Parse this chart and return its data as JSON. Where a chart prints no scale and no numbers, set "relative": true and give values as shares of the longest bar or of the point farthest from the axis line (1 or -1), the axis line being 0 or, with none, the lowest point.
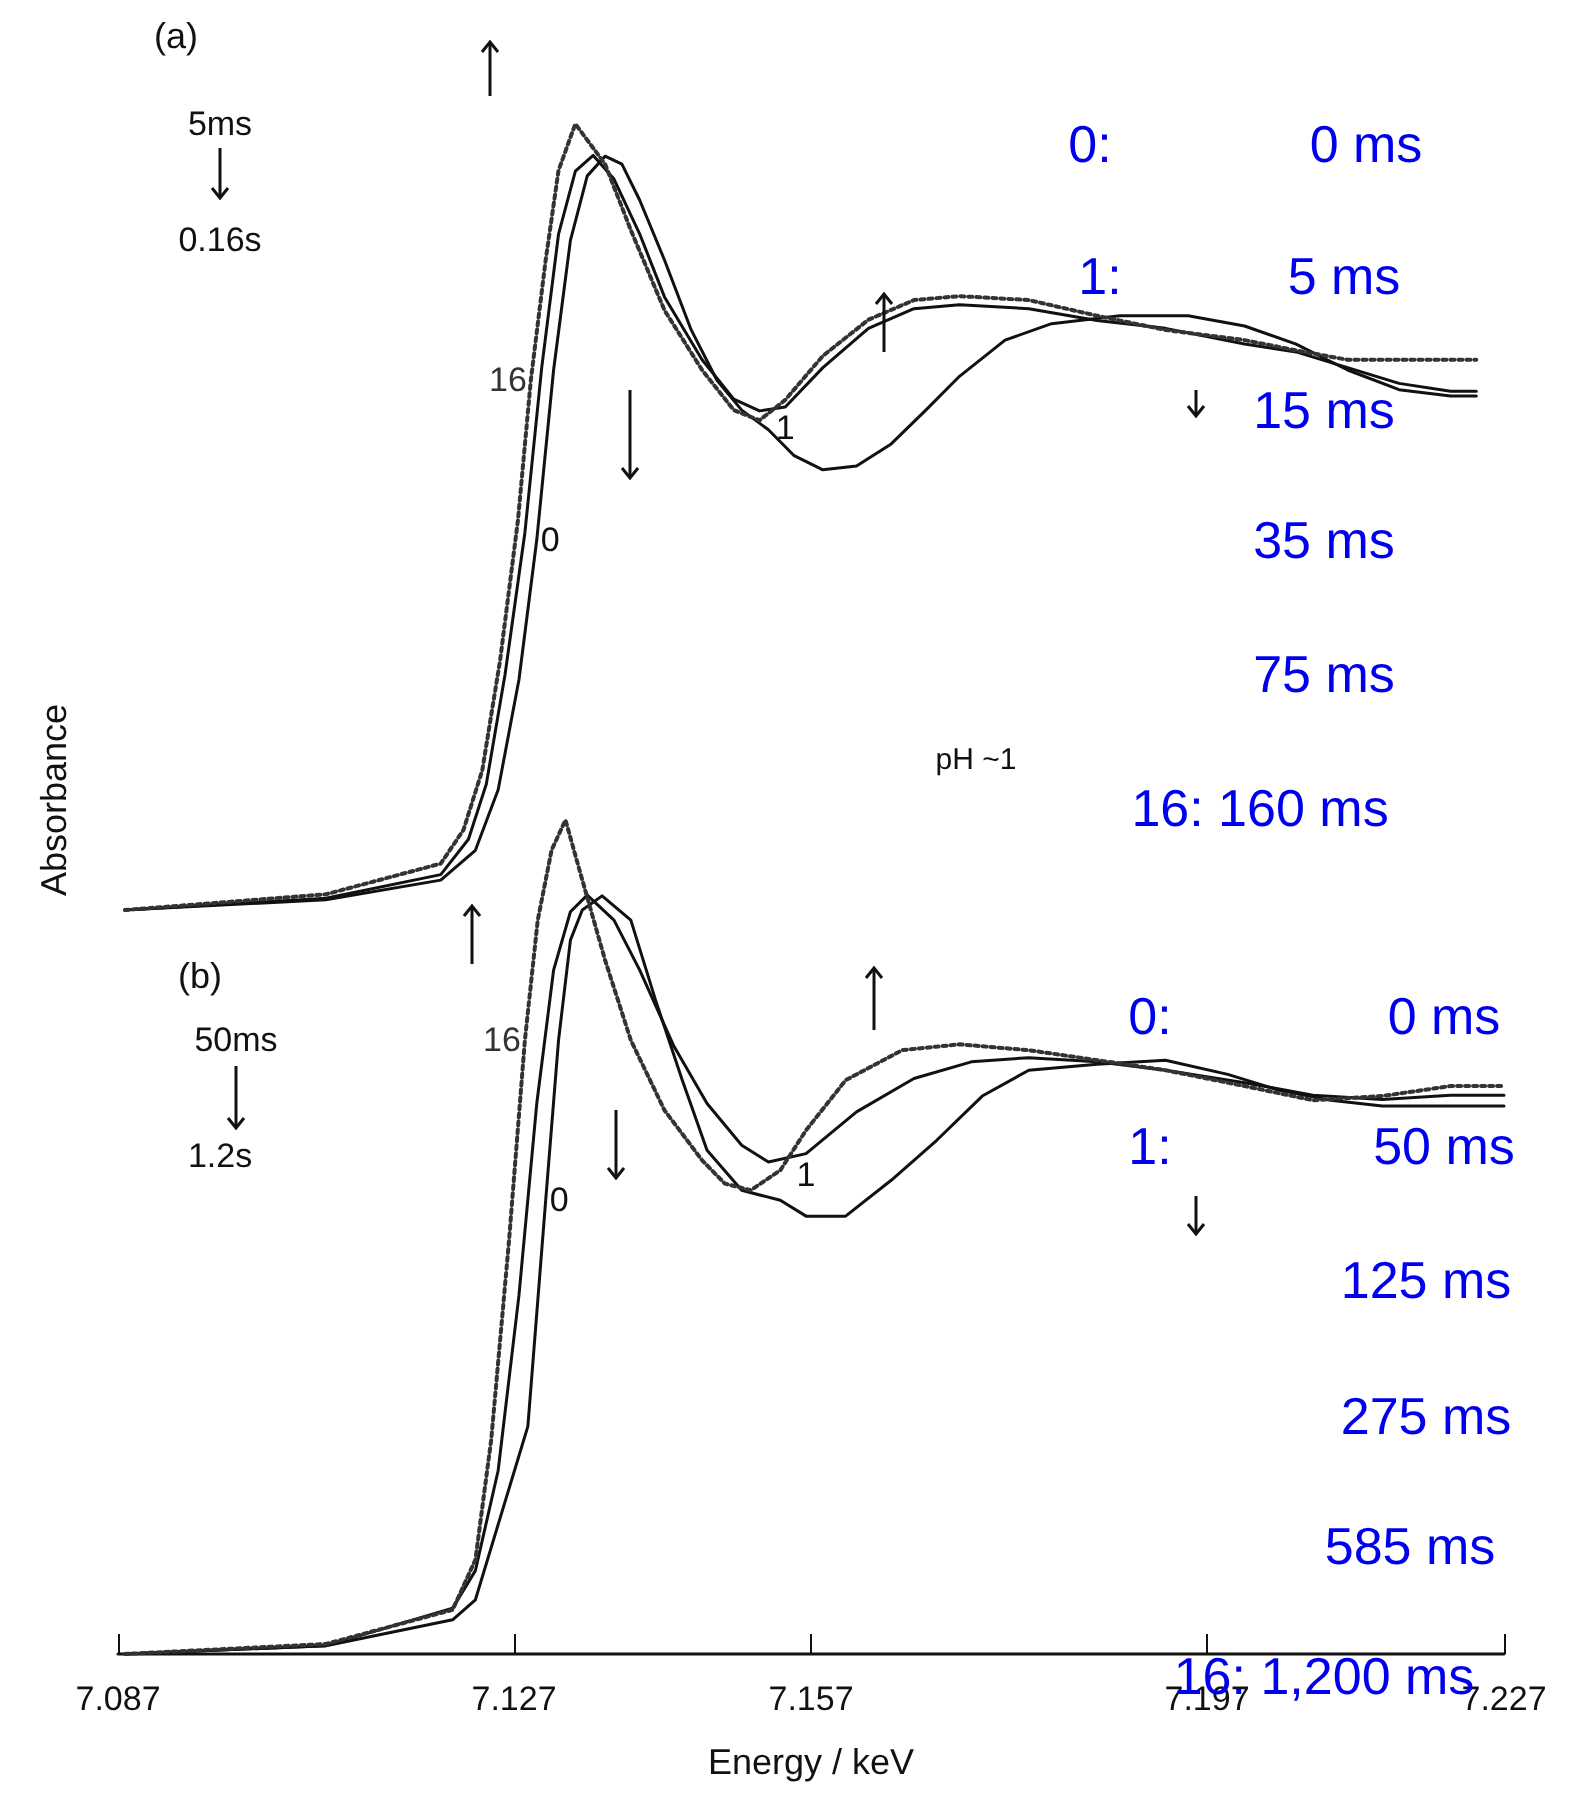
{
  "chart_data": [
    {
      "type": "line",
      "relative": true,
      "ylabel": "Absorbance",
      "xlim": [
        7.087,
        7.227
      ],
      "tick_labels": false,
      "grid": false,
      "legend": false,
      "marker": "none",
      "annotations": [
        "(a)",
        "5ms",
        "0.16s",
        "pH ~1",
        "0:",
        "0 ms",
        "1:",
        "5 ms",
        "15 ms",
        "35 ms",
        "75 ms",
        "16: 160 ms"
      ],
      "series": [
        {
          "name": "0",
          "color": "#111111",
          "line_style": "solid",
          "x": [
            7.0877,
            7.108,
            7.1196,
            7.1231,
            7.1254,
            7.1275,
            7.1293,
            7.131,
            7.1327,
            7.1344,
            7.1362,
            7.1379,
            7.1397,
            7.1422,
            7.1449,
            7.1475,
            7.15,
            7.1527,
            7.1553,
            7.1582,
            7.1616,
            7.1651,
            7.1686,
            7.172,
            7.1766,
            7.1813,
            7.1882,
            7.1951,
            7.2008,
            7.206,
            7.2112,
            7.2164,
            7.2216,
            7.2242
          ],
          "values": [
            0,
            0.013,
            0.038,
            0.076,
            0.153,
            0.293,
            0.471,
            0.687,
            0.852,
            0.934,
            0.959,
            0.949,
            0.903,
            0.827,
            0.738,
            0.674,
            0.636,
            0.611,
            0.578,
            0.56,
            0.565,
            0.593,
            0.636,
            0.679,
            0.725,
            0.746,
            0.756,
            0.756,
            0.743,
            0.72,
            0.687,
            0.662,
            0.654,
            0.654
          ]
        },
        {
          "name": "1",
          "color": "#111111",
          "line_style": "solid",
          "x": [
            7.0877,
            7.108,
            7.1196,
            7.1224,
            7.1242,
            7.1261,
            7.1281,
            7.1298,
            7.1315,
            7.1332,
            7.135,
            7.1371,
            7.1397,
            7.1422,
            7.146,
            7.1492,
            7.1518,
            7.1544,
            7.1582,
            7.1628,
            7.1674,
            7.172,
            7.179,
            7.1859,
            7.1928,
            7.2008,
            7.206,
            7.2112,
            7.2164,
            7.2216,
            7.2242
          ],
          "values": [
            0,
            0.015,
            0.045,
            0.09,
            0.16,
            0.3,
            0.48,
            0.69,
            0.86,
            0.94,
            0.96,
            0.93,
            0.86,
            0.78,
            0.7,
            0.65,
            0.635,
            0.64,
            0.69,
            0.74,
            0.765,
            0.77,
            0.765,
            0.75,
            0.74,
            0.72,
            0.71,
            0.69,
            0.67,
            0.66,
            0.66
          ]
        },
        {
          "name": "16",
          "color": "#333333",
          "line_style": "dotted",
          "x": [
            7.0877,
            7.108,
            7.1196,
            7.1219,
            7.1238,
            7.1256,
            7.1274,
            7.1287,
            7.1302,
            7.1315,
            7.1329,
            7.1332,
            7.1362,
            7.1388,
            7.1422,
            7.146,
            7.1492,
            7.1518,
            7.1544,
            7.1582,
            7.1628,
            7.1674,
            7.172,
            7.179,
            7.1859,
            7.1928,
            7.2008,
            7.206,
            7.2112,
            7.2164,
            7.2216,
            7.2242
          ],
          "values": [
            0,
            0.02,
            0.059,
            0.102,
            0.178,
            0.318,
            0.496,
            0.674,
            0.827,
            0.941,
            0.99,
            1,
            0.949,
            0.865,
            0.763,
            0.687,
            0.636,
            0.623,
            0.649,
            0.705,
            0.751,
            0.776,
            0.781,
            0.776,
            0.756,
            0.738,
            0.725,
            0.712,
            0.7,
            0.7,
            0.7,
            0.7
          ]
        }
      ]
    },
    {
      "type": "line",
      "relative": true,
      "xlabel": "Energy / keV",
      "xlim": [
        7.087,
        7.227
      ],
      "xticks": [
        7.087,
        7.127,
        7.157,
        7.197,
        7.227
      ],
      "tick_labels": "x",
      "grid": false,
      "legend": false,
      "marker": "none",
      "annotations": [
        "(b)",
        "50ms",
        "1.2s",
        "0:",
        "0 ms",
        "1:",
        "50 ms",
        "125 ms",
        "275 ms",
        "585 ms",
        "16: 1,200 ms"
      ],
      "series": [
        {
          "name": "0",
          "color": "#111111",
          "line_style": "solid",
          "x": [
            7.0877,
            7.108,
            7.1208,
            7.1231,
            7.1284,
            7.1302,
            7.1315,
            7.1327,
            7.1339,
            7.1359,
            7.1388,
            7.1413,
            7.144,
            7.1465,
            7.15,
            7.1539,
            7.1565,
            7.1605,
            7.1651,
            7.1697,
            7.1743,
            7.179,
            7.1859,
            7.1928,
            7.1991,
            7.2043,
            7.2095,
            7.2147,
            7.2216,
            7.227
          ],
          "values": [
            0,
            0.01,
            0.041,
            0.065,
            0.273,
            0.544,
            0.736,
            0.856,
            0.892,
            0.909,
            0.88,
            0.784,
            0.688,
            0.604,
            0.556,
            0.544,
            0.525,
            0.525,
            0.568,
            0.616,
            0.669,
            0.7,
            0.707,
            0.712,
            0.695,
            0.676,
            0.664,
            0.657,
            0.657,
            0.657
          ]
        },
        {
          "name": "1",
          "color": "#111111",
          "line_style": "solid",
          "x": [
            7.0877,
            7.108,
            7.1208,
            7.1231,
            7.1254,
            7.1275,
            7.1293,
            7.131,
            7.1327,
            7.1344,
            7.1371,
            7.1397,
            7.1431,
            7.1465,
            7.15,
            7.1527,
            7.1565,
            7.1616,
            7.1674,
            7.1732,
            7.179,
            7.1859,
            7.1928,
            7.2008,
            7.2077,
            7.2147,
            7.2216,
            7.227
          ],
          "values": [
            0,
            0.01,
            0.055,
            0.1,
            0.22,
            0.43,
            0.66,
            0.82,
            0.89,
            0.91,
            0.88,
            0.82,
            0.73,
            0.66,
            0.61,
            0.59,
            0.6,
            0.65,
            0.69,
            0.71,
            0.715,
            0.71,
            0.7,
            0.685,
            0.67,
            0.665,
            0.67,
            0.67
          ]
        },
        {
          "name": "16",
          "color": "#333333",
          "line_style": "dotted",
          "x": [
            7.0877,
            7.108,
            7.1208,
            7.1231,
            7.1247,
            7.1265,
            7.1281,
            7.1294,
            7.1308,
            7.1322,
            7.1339,
            7.1362,
            7.1388,
            7.1422,
            7.146,
            7.1483,
            7.1509,
            7.1539,
            7.1565,
            7.1605,
            7.1662,
            7.172,
            7.179,
            7.1859,
            7.1928,
            7.2008,
            7.2077,
            7.2147,
            7.2216,
            7.227
          ],
          "values": [
            0,
            0.012,
            0.053,
            0.113,
            0.257,
            0.496,
            0.736,
            0.88,
            0.964,
            1,
            0.928,
            0.832,
            0.736,
            0.652,
            0.592,
            0.564,
            0.556,
            0.58,
            0.628,
            0.688,
            0.724,
            0.731,
            0.724,
            0.712,
            0.7,
            0.681,
            0.664,
            0.669,
            0.681,
            0.681
          ]
        }
      ]
    }
  ]
}
